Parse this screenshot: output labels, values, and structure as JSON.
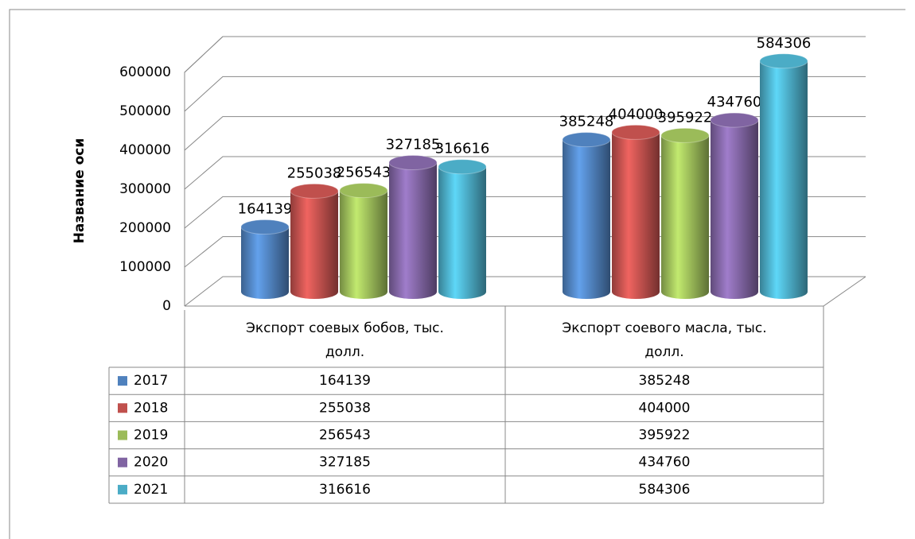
{
  "chart_data": {
    "type": "bar3d",
    "y_label": "Название оси",
    "categories": [
      "Экспорт соевых бобов, тыс. долл.",
      "Экспорт соевого масла, тыс. долл."
    ],
    "series": [
      {
        "name": "2017",
        "color": "#4f81bd",
        "values": [
          164139,
          385248
        ]
      },
      {
        "name": "2018",
        "color": "#c0504d",
        "values": [
          255038,
          404000
        ]
      },
      {
        "name": "2019",
        "color": "#9bbb59",
        "values": [
          256543,
          395922
        ]
      },
      {
        "name": "2020",
        "color": "#8064a2",
        "values": [
          327185,
          434760
        ]
      },
      {
        "name": "2021",
        "color": "#4bacc6",
        "values": [
          316616,
          584306
        ]
      }
    ],
    "ylim": [
      0,
      600000
    ],
    "yticks": [
      0,
      100000,
      200000,
      300000,
      400000,
      500000,
      600000
    ],
    "grid": true,
    "data_table": true
  }
}
